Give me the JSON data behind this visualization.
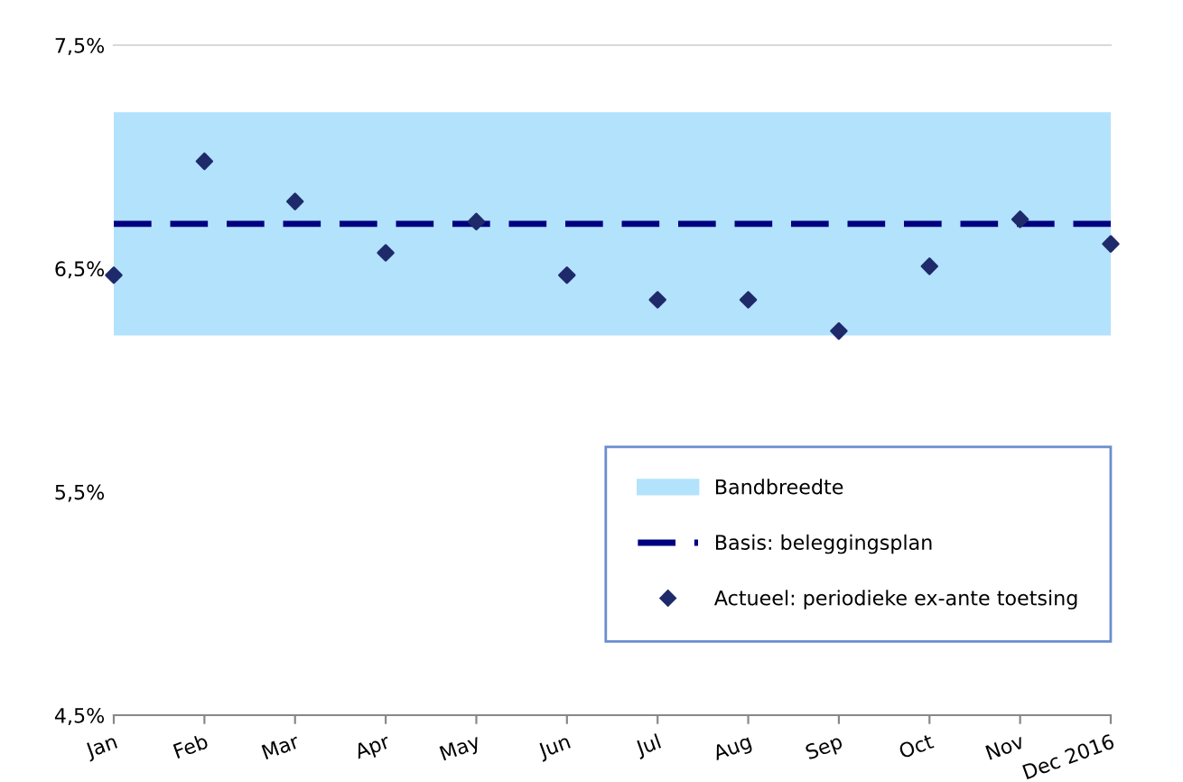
{
  "chart_data": {
    "type": "scatter",
    "categories": [
      "Jan",
      "Feb",
      "Mar",
      "Apr",
      "May",
      "Jun",
      "Jul",
      "Aug",
      "Sep",
      "Oct",
      "Nov",
      "Dec 2016"
    ],
    "series": [
      {
        "name": "Actueel: periodieke ex-ante toetsing",
        "color": "#1f2a6b",
        "values": [
          6.47,
          6.98,
          6.8,
          6.57,
          6.71,
          6.47,
          6.36,
          6.36,
          6.22,
          6.51,
          6.72,
          6.61
        ]
      }
    ],
    "ylim": [
      4.5,
      7.5
    ],
    "yticks": [
      {
        "value": 4.5,
        "label": "4,5%"
      },
      {
        "value": 5.5,
        "label": "5,5%"
      },
      {
        "value": 6.5,
        "label": "6,5%"
      },
      {
        "value": 7.5,
        "label": "7,5%"
      }
    ],
    "bands": [
      {
        "axis": "y",
        "from": 6.2,
        "to": 7.2,
        "label": "Bandbreedte",
        "color": "#b3e2fc"
      }
    ],
    "ref_lines": [
      {
        "axis": "y",
        "value": 6.7,
        "label": "Basis: beleggingsplan",
        "color": "#000080",
        "line_style": "dashed"
      }
    ],
    "marker": "diamond",
    "legend": "bottom right"
  }
}
